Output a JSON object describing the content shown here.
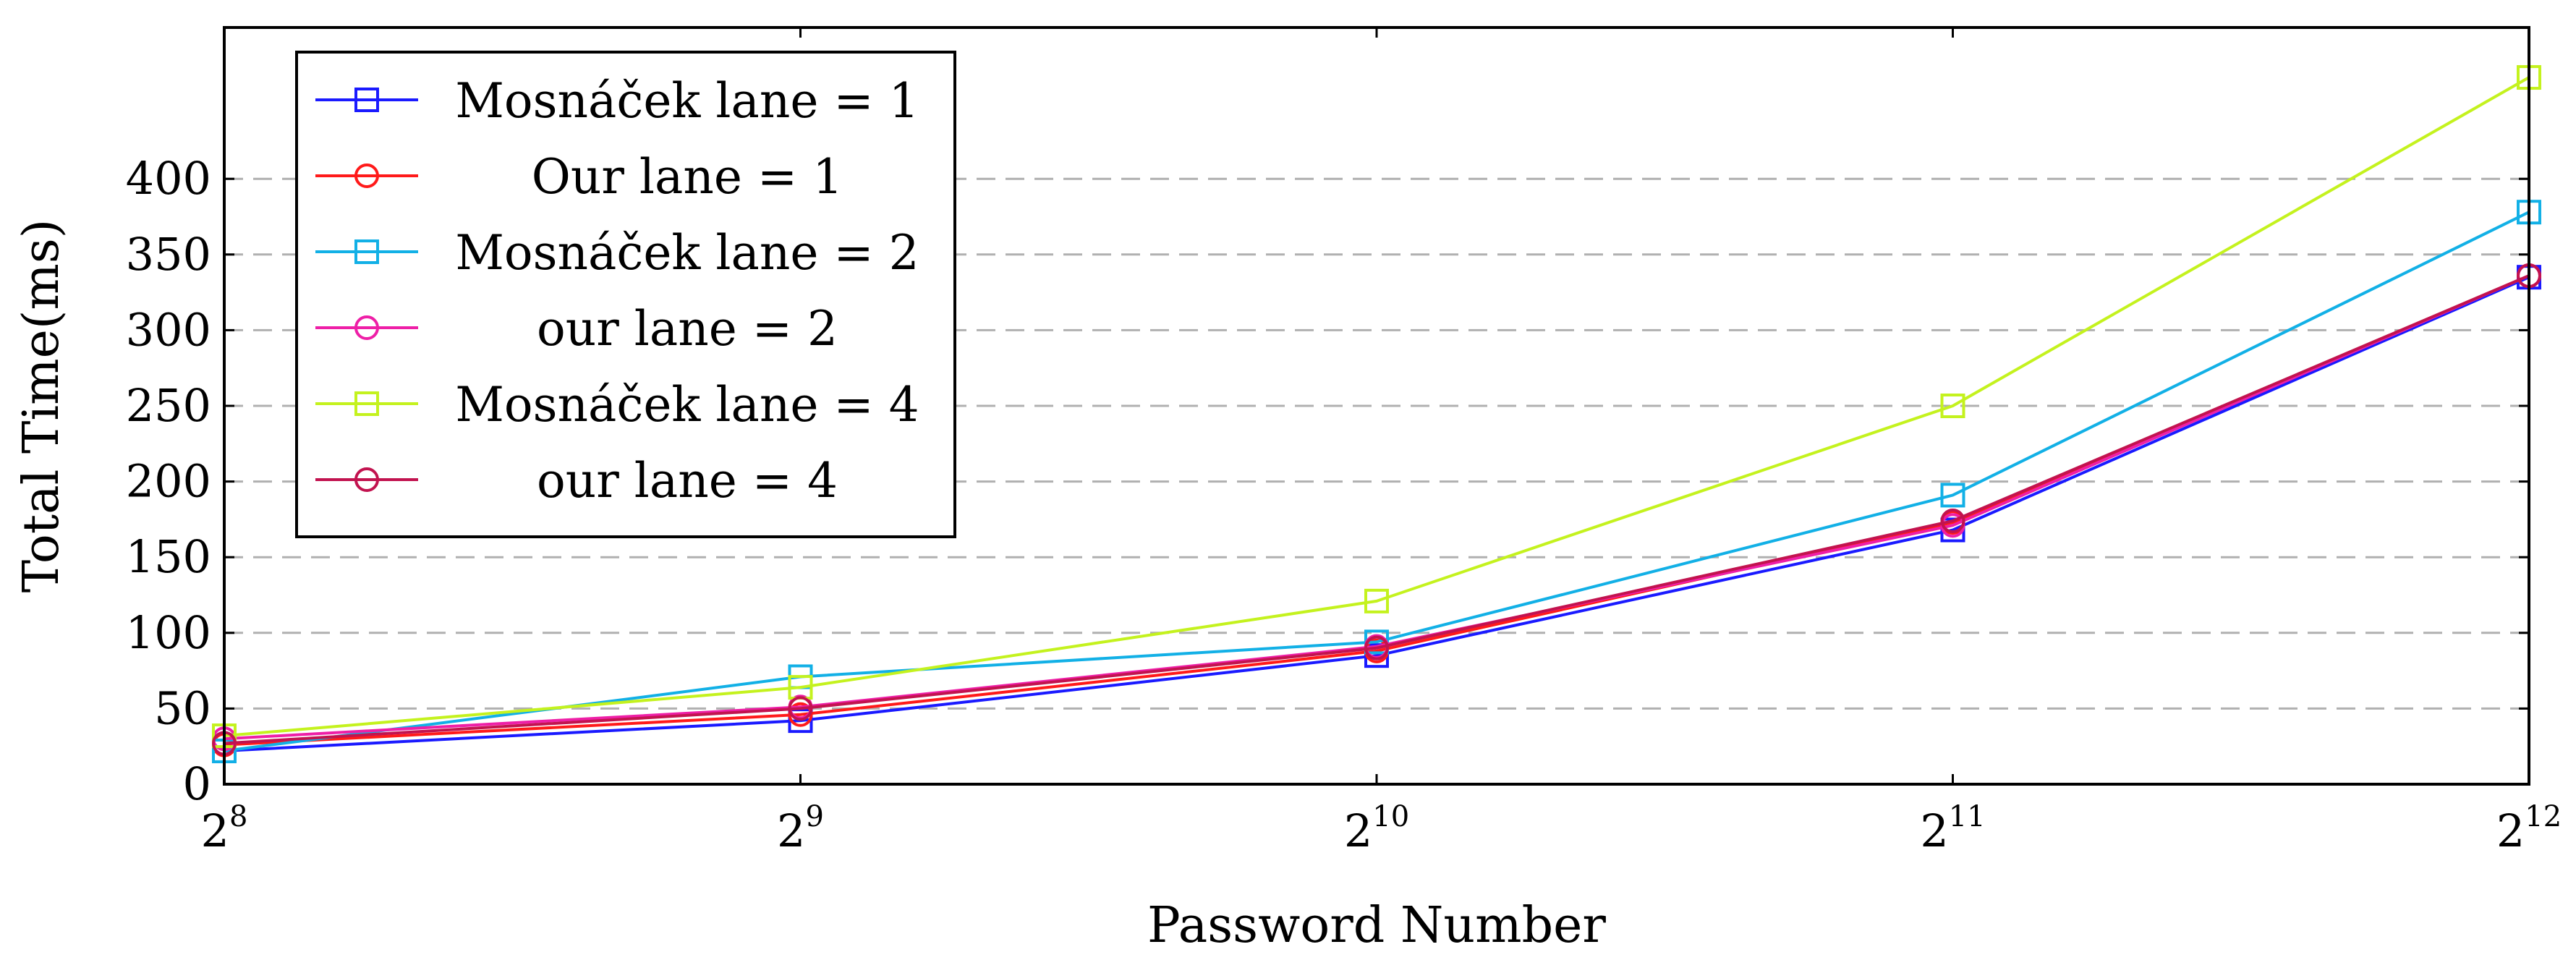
{
  "chart_data": {
    "type": "line",
    "title": "",
    "xlabel": "Password Number",
    "ylabel": "Total Time(ms)",
    "x_ticks": [
      {
        "base": "2",
        "exp": "8"
      },
      {
        "base": "2",
        "exp": "9"
      },
      {
        "base": "2",
        "exp": "10"
      },
      {
        "base": "2",
        "exp": "11"
      },
      {
        "base": "2",
        "exp": "12"
      }
    ],
    "x": [
      8,
      9,
      10,
      11,
      12
    ],
    "x_scale": "log2",
    "y_ticks": [
      0,
      50,
      100,
      150,
      200,
      250,
      300,
      350,
      400
    ],
    "ylim": [
      0,
      500
    ],
    "grid": "horizontal dashed",
    "legend_position": "top-left",
    "series": [
      {
        "name": "Mosnáček lane = 1",
        "color": "#1a1aff",
        "marker": "square",
        "values": [
          22,
          42,
          85,
          168,
          335
        ]
      },
      {
        "name": "Our lane = 1",
        "color": "#ff1a1a",
        "marker": "circle",
        "values": [
          26,
          46,
          88,
          173,
          336
        ]
      },
      {
        "name": "Mosnáček lane = 2",
        "color": "#12b0e6",
        "marker": "square",
        "values": [
          22,
          71,
          94,
          191,
          378
        ]
      },
      {
        "name": "our lane = 2",
        "color": "#ee1fa7",
        "marker": "circle",
        "values": [
          30,
          51,
          91,
          171,
          336
        ]
      },
      {
        "name": "Mosnáček lane = 4",
        "color": "#c4f21e",
        "marker": "square",
        "values": [
          32,
          64,
          121,
          250,
          467
        ]
      },
      {
        "name": "our lane = 4",
        "color": "#c2134f",
        "marker": "circle",
        "values": [
          27,
          50,
          90,
          174,
          336
        ]
      }
    ]
  }
}
